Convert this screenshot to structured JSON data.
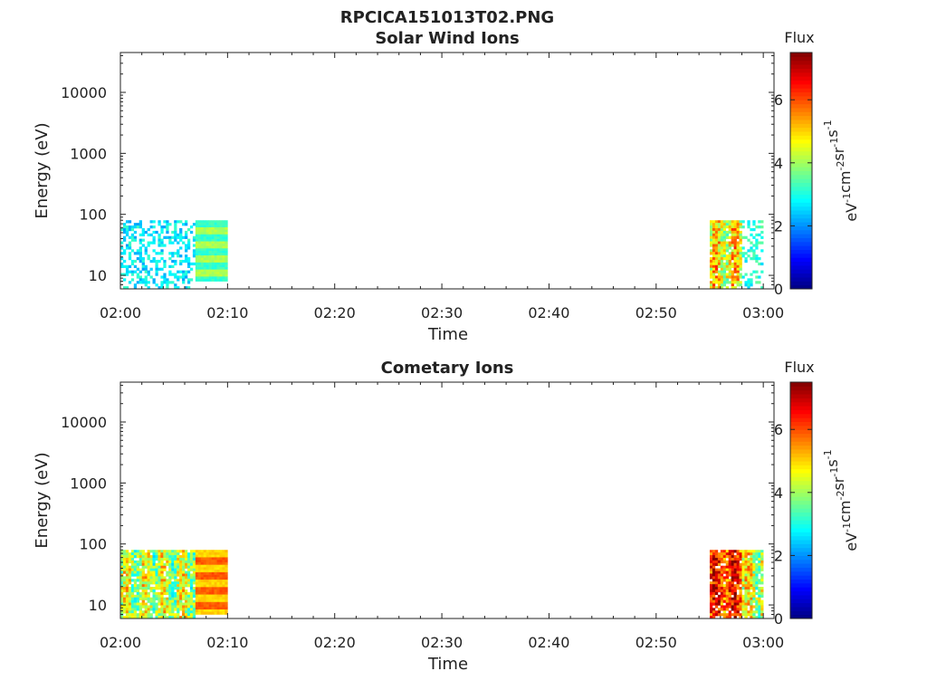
{
  "figure_title": "RPCICA151013T02.PNG",
  "chart_data": [
    {
      "type": "heatmap",
      "title": "Solar Wind Ions",
      "xlabel": "Time",
      "ylabel": "Energy (eV)",
      "xlim": [
        "02:00",
        "03:01"
      ],
      "ylim": [
        6,
        45000
      ],
      "yscale": "log",
      "x_ticks": [
        "02:00",
        "02:10",
        "02:20",
        "02:30",
        "02:40",
        "02:50",
        "03:00"
      ],
      "y_ticks": [
        "10",
        "100",
        "1000",
        "10000"
      ],
      "colorbar": {
        "title": "Flux",
        "label": "eV-1cm-2sr-1s-1",
        "range": [
          0,
          7.5
        ],
        "ticks": [
          "0",
          "2",
          "4",
          "6"
        ],
        "colormap": "jet"
      },
      "blocks": [
        {
          "t_start": "02:00",
          "t_end": "02:07",
          "e_low": 6,
          "e_high": 80,
          "level": 2.7,
          "texture": "sparse"
        },
        {
          "t_start": "02:07",
          "t_end": "02:10",
          "e_low": 8,
          "e_high": 80,
          "level": 3.6,
          "texture": "bands"
        },
        {
          "t_start": "02:55",
          "t_end": "02:58",
          "e_low": 6,
          "e_high": 80,
          "level": 4.7,
          "texture": "mixed"
        },
        {
          "t_start": "02:58",
          "t_end": "03:00",
          "e_low": 6,
          "e_high": 80,
          "level": 3.0,
          "texture": "sparse"
        }
      ]
    },
    {
      "type": "heatmap",
      "title": "Cometary Ions",
      "xlabel": "Time",
      "ylabel": "Energy (eV)",
      "xlim": [
        "02:00",
        "03:01"
      ],
      "ylim": [
        6,
        45000
      ],
      "yscale": "log",
      "x_ticks": [
        "02:00",
        "02:10",
        "02:20",
        "02:30",
        "02:40",
        "02:50",
        "03:00"
      ],
      "y_ticks": [
        "10",
        "100",
        "1000",
        "10000"
      ],
      "colorbar": {
        "title": "Flux",
        "label": "eV-1cm-2sr-1s-1",
        "range": [
          0,
          7.5
        ],
        "ticks": [
          "0",
          "2",
          "4",
          "6"
        ],
        "colormap": "jet"
      },
      "blocks": [
        {
          "t_start": "02:00",
          "t_end": "02:07",
          "e_low": 6,
          "e_high": 80,
          "level": 4.2,
          "texture": "mixed"
        },
        {
          "t_start": "02:07",
          "t_end": "02:10",
          "e_low": 7,
          "e_high": 80,
          "level": 5.4,
          "texture": "bands"
        },
        {
          "t_start": "02:55",
          "t_end": "02:58",
          "e_low": 6,
          "e_high": 80,
          "level": 6.2,
          "texture": "mixed"
        },
        {
          "t_start": "02:58",
          "t_end": "03:00",
          "e_low": 6,
          "e_high": 80,
          "level": 4.4,
          "texture": "mixed"
        }
      ]
    }
  ]
}
